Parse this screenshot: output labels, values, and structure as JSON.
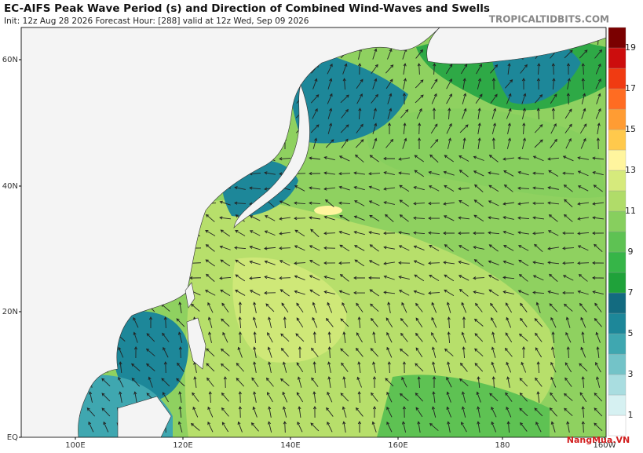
{
  "header": {
    "title": "EC-AIFS Peak Wave Period (s) and Direction of Combined Wind-Waves and Swells",
    "subtitle": "Init: 12z Aug 28 2026   Forecast Hour: [288]   valid at 12z Wed, Sep 09 2026",
    "site": "TROPICALTIDBITS.COM"
  },
  "lat_labels": [
    "60N",
    "40N",
    "20N",
    "EQ"
  ],
  "lon_labels": [
    "100E",
    "120E",
    "140E",
    "160E",
    "180",
    "160W"
  ],
  "colorbar": {
    "ticks": [
      1,
      3,
      5,
      7,
      9,
      11,
      13,
      15,
      17,
      19
    ],
    "colors": [
      "#ffffff",
      "#d6f1f2",
      "#a9dde0",
      "#73c3c8",
      "#3fa7b0",
      "#1d8799",
      "#136b80",
      "#1fa23a",
      "#36b548",
      "#5ec253",
      "#87cf5e",
      "#b0dc69",
      "#d6ea7c",
      "#fff59e",
      "#ffc94c",
      "#ff9c33",
      "#ff6c22",
      "#f03b12",
      "#cc0d0d",
      "#7a0000"
    ]
  },
  "watermark": "NangMua.VN"
}
